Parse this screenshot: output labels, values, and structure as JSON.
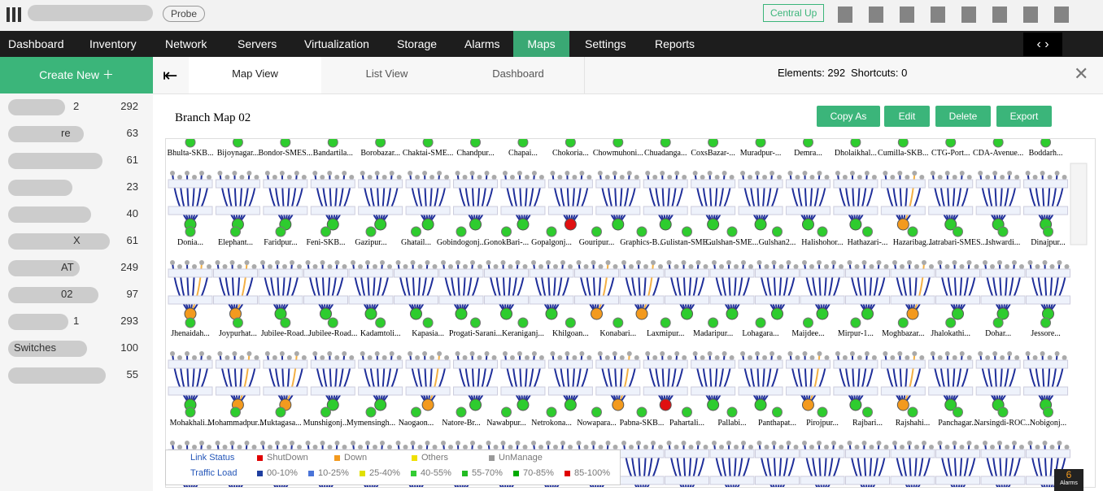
{
  "header": {
    "probe": "Probe",
    "central": "Central Up"
  },
  "nav": [
    "Dashboard",
    "Inventory",
    "Network",
    "Servers",
    "Virtualization",
    "Storage",
    "Alarms",
    "Maps",
    "Settings",
    "Reports"
  ],
  "sidebar": {
    "create": "Create New",
    "items": [
      {
        "name": "2",
        "count": "292"
      },
      {
        "name": "re",
        "count": "63"
      },
      {
        "count": "61"
      },
      {
        "count": "23"
      },
      {
        "count": "40"
      },
      {
        "name": "X",
        "count": "61"
      },
      {
        "name": "AT",
        "count": "249"
      },
      {
        "name": "02",
        "count": "97"
      },
      {
        "name": "1",
        "count": "293"
      },
      {
        "name": "Switches",
        "count": "100"
      },
      {
        "count": "55"
      }
    ]
  },
  "tabs": [
    "Map View",
    "List View",
    "Dashboard"
  ],
  "elements": "Elements: 292",
  "shortcuts": "Shortcuts: 0",
  "map": {
    "title": "Branch Map 02",
    "buttons": [
      "Copy As",
      "Edit",
      "Delete",
      "Export"
    ],
    "rows": [
      [
        {
          "name": "Bhulta-SKB...",
          "color": "#2ecc2e"
        },
        {
          "name": "Bijoynagar...",
          "color": "#2ecc2e"
        },
        {
          "name": "Bondor-SMES...",
          "color": "#2ecc2e"
        },
        {
          "name": "Bandartila...",
          "color": "#2ecc2e"
        },
        {
          "name": "Borobazar...",
          "color": "#2ecc2e"
        },
        {
          "name": "Chaktai-SME...",
          "color": "#2ecc2e"
        },
        {
          "name": "Chandpur...",
          "color": "#2ecc2e"
        },
        {
          "name": "Chapai...",
          "color": "#2ecc2e"
        },
        {
          "name": "Chokoria...",
          "color": "#e01010"
        },
        {
          "name": "Chowmuhoni...",
          "color": "#2ecc2e"
        },
        {
          "name": "Chuadanga...",
          "color": "#2ecc2e"
        },
        {
          "name": "CoxsBazar-...",
          "color": "#2ecc2e"
        },
        {
          "name": "Muradpur-...",
          "color": "#2ecc2e"
        },
        {
          "name": "Demra...",
          "color": "#2ecc2e"
        },
        {
          "name": "Dholaikhal...",
          "color": "#2ecc2e"
        },
        {
          "name": "Cumilla-SKB...",
          "color": "#f39a1e"
        },
        {
          "name": "CTG-Port...",
          "color": "#2ecc2e"
        },
        {
          "name": "CDA-Avenue...",
          "color": "#2ecc2e"
        },
        {
          "name": "Boddarh...",
          "color": "#2ecc2e"
        }
      ],
      [
        {
          "name": "Donia...",
          "color": "#f39a1e"
        },
        {
          "name": "Elephant...",
          "color": "#f39a1e"
        },
        {
          "name": "Faridpur...",
          "color": "#2ecc2e"
        },
        {
          "name": "Feni-SKB...",
          "color": "#2ecc2e"
        },
        {
          "name": "Gazipur...",
          "color": "#2ecc2e"
        },
        {
          "name": "Ghatail...",
          "color": "#2ecc2e"
        },
        {
          "name": "Gobindogonj...",
          "color": "#2ecc2e"
        },
        {
          "name": "GonokBari-...",
          "color": "#2ecc2e"
        },
        {
          "name": "Gopalgonj...",
          "color": "#2ecc2e"
        },
        {
          "name": "Gouripur...",
          "color": "#f39a1e"
        },
        {
          "name": "Graphics-B...",
          "color": "#f39a1e"
        },
        {
          "name": "Gulistan-SME...",
          "color": "#2ecc2e"
        },
        {
          "name": "Gulshan-SME...",
          "color": "#2ecc2e"
        },
        {
          "name": "Gulshan2...",
          "color": "#2ecc2e"
        },
        {
          "name": "Halishohor...",
          "color": "#2ecc2e"
        },
        {
          "name": "Hathazari-...",
          "color": "#2ecc2e"
        },
        {
          "name": "Hazaribag...",
          "color": "#f39a1e"
        },
        {
          "name": "Jatrabari-SMES...",
          "color": "#2ecc2e"
        },
        {
          "name": "Ishwardi...",
          "color": "#2ecc2e"
        },
        {
          "name": "Dinajpur...",
          "color": "#2ecc2e"
        }
      ],
      [
        {
          "name": "Jhenaidah...",
          "color": "#2ecc2e"
        },
        {
          "name": "Joypurhat...",
          "color": "#f39a1e"
        },
        {
          "name": "Jubilee-Road...",
          "color": "#f39a1e"
        },
        {
          "name": "Jubilee-Road...",
          "color": "#2ecc2e"
        },
        {
          "name": "Kadamtoli...",
          "color": "#2ecc2e"
        },
        {
          "name": "Kapasia...",
          "color": "#f39a1e"
        },
        {
          "name": "Progati-Sarani...",
          "color": "#2ecc2e"
        },
        {
          "name": "Keraniganj...",
          "color": "#2ecc2e"
        },
        {
          "name": "Khilgoan...",
          "color": "#2ecc2e"
        },
        {
          "name": "Konabari...",
          "color": "#f39a1e"
        },
        {
          "name": "Laxmipur...",
          "color": "#e01010"
        },
        {
          "name": "Madaripur...",
          "color": "#2ecc2e"
        },
        {
          "name": "Lohagara...",
          "color": "#2ecc2e"
        },
        {
          "name": "Maijdee...",
          "color": "#f39a1e"
        },
        {
          "name": "Mirpur-1...",
          "color": "#2ecc2e"
        },
        {
          "name": "Moghbazar...",
          "color": "#f39a1e"
        },
        {
          "name": "Jhalokathi...",
          "color": "#2ecc2e"
        },
        {
          "name": "Dohar...",
          "color": "#2ecc2e"
        },
        {
          "name": "Jessore...",
          "color": "#2ecc2e"
        }
      ],
      [
        {
          "name": "Mohakhali...",
          "color": "#2ecc2e"
        },
        {
          "name": "Mohammadpur...",
          "color": "#2ecc2e"
        },
        {
          "name": "Muktagasa...",
          "color": "#2ecc2e"
        },
        {
          "name": "Munshigonj...",
          "color": "#2ecc2e"
        },
        {
          "name": "Mymensingh...",
          "color": "#2ecc2e"
        },
        {
          "name": "Naogaon...",
          "color": "#2ecc2e"
        },
        {
          "name": "Natore-Br...",
          "color": "#2ecc2e"
        },
        {
          "name": "Nawabpur...",
          "color": "#2ecc2e"
        },
        {
          "name": "Netrokona...",
          "color": "#2ecc2e"
        },
        {
          "name": "Nowapara...",
          "color": "#2ecc2e"
        },
        {
          "name": "Pabna-SKB...",
          "color": "#2ecc2e"
        },
        {
          "name": "Pahartali...",
          "color": "#2ecc2e"
        },
        {
          "name": "Pallabi...",
          "color": "#2ecc2e"
        },
        {
          "name": "Panthapat...",
          "color": "#2ecc2e"
        },
        {
          "name": "Pirojpur...",
          "color": "#2ecc2e"
        },
        {
          "name": "Rajbari...",
          "color": "#2ecc2e"
        },
        {
          "name": "Rajshahi...",
          "color": "#2ecc2e"
        },
        {
          "name": "Panchagar...",
          "color": "#2ecc2e"
        },
        {
          "name": "Narsingdi-ROC...",
          "color": "#2ecc2e"
        },
        {
          "name": "Nobigonj...",
          "color": "#2ecc2e"
        }
      ]
    ]
  },
  "legend": {
    "status_title": "Link Status",
    "status": [
      {
        "label": "ShutDown",
        "color": "#e00000"
      },
      {
        "label": "Down",
        "color": "#f39a1e"
      },
      {
        "label": "Others",
        "color": "#f0e000"
      },
      {
        "label": "UnManage",
        "color": "#999999"
      }
    ],
    "load_title": "Traffic Load",
    "load": [
      {
        "label": "00-10%",
        "color": "#1f3fa0"
      },
      {
        "label": "10-25%",
        "color": "#4a74d8"
      },
      {
        "label": "25-40%",
        "color": "#e0e000"
      },
      {
        "label": "40-55%",
        "color": "#33cc33"
      },
      {
        "label": "55-70%",
        "color": "#22bb22"
      },
      {
        "label": "70-85%",
        "color": "#00aa00"
      },
      {
        "label": "85-100%",
        "color": "#e00000"
      }
    ]
  },
  "alarms": {
    "count": "6",
    "label": "Alarms"
  }
}
